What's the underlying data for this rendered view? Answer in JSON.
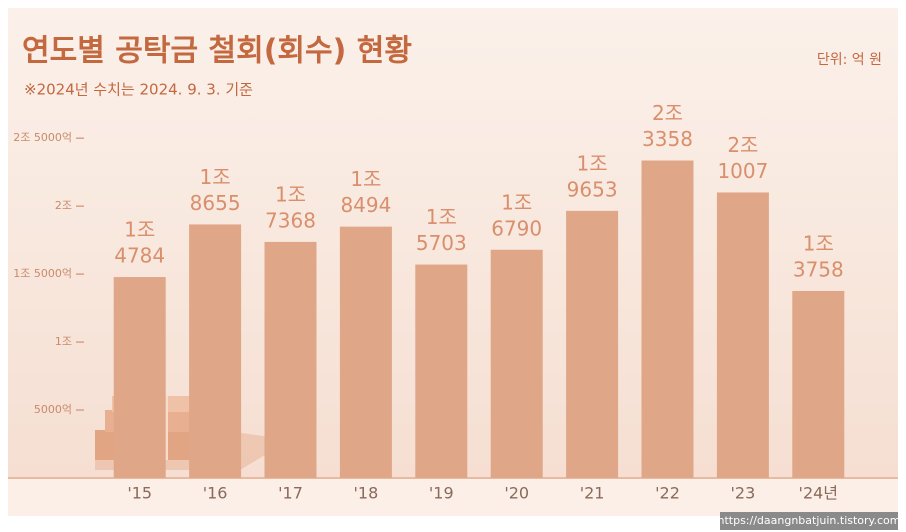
{
  "chart_data": {
    "type": "bar",
    "title": "연도별 공탁금 철회(회수) 현황",
    "subtitle": "※2024년 수치는 2024. 9. 3. 기준",
    "unit": "단위: 억 원",
    "categories": [
      "'15",
      "'16",
      "'17",
      "'18",
      "'19",
      "'20",
      "'21",
      "'22",
      "'23",
      "'24년"
    ],
    "values": [
      14784,
      18655,
      17368,
      18494,
      15703,
      16790,
      19653,
      23358,
      21007,
      13758
    ],
    "value_labels": [
      [
        "1조",
        "4784"
      ],
      [
        "1조",
        "8655"
      ],
      [
        "1조",
        "7368"
      ],
      [
        "1조",
        "8494"
      ],
      [
        "1조",
        "5703"
      ],
      [
        "1조",
        "6790"
      ],
      [
        "1조",
        "9653"
      ],
      [
        "2조",
        "3358"
      ],
      [
        "2조",
        "1007"
      ],
      [
        "1조",
        "3758"
      ]
    ],
    "color": "#e0a688",
    "ylim": [
      0,
      27000
    ],
    "yticks": [
      {
        "value": 5000,
        "label": "5000억"
      },
      {
        "value": 10000,
        "label": "1조"
      },
      {
        "value": 15000,
        "label": "1조 5000억"
      },
      {
        "value": 20000,
        "label": "2조"
      },
      {
        "value": 25000,
        "label": "2조 5000억"
      }
    ],
    "watermark": "https://daangnbatjuin.tistory.com"
  }
}
